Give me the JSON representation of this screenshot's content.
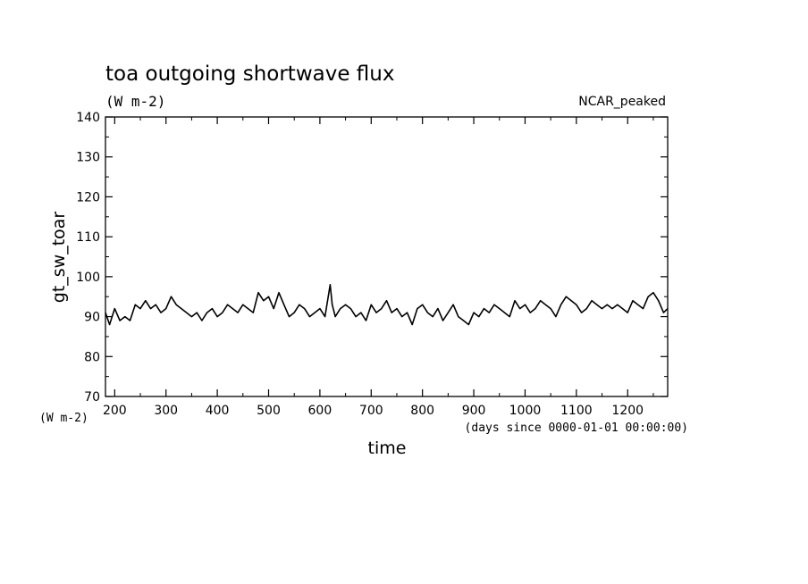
{
  "chart_data": {
    "type": "line",
    "title": "toa outgoing shortwave flux",
    "subtitle": "(W m-2)",
    "label_right": "NCAR_peaked",
    "xlabel": "time",
    "xunits": "(days since 0000-01-01 00:00:00)",
    "ylabel": "gt_sw_toar",
    "yunits": "(W m-2)",
    "xlim": [
      182,
      1278
    ],
    "ylim": [
      70,
      140
    ],
    "xticks": [
      200,
      300,
      400,
      500,
      600,
      700,
      800,
      900,
      1000,
      1100,
      1200
    ],
    "yticks": [
      70,
      80,
      90,
      100,
      110,
      120,
      130,
      140
    ],
    "grid": false,
    "colors": {
      "line": "#000000"
    },
    "series": [
      {
        "x": [
          182,
          190,
          200,
          210,
          220,
          230,
          240,
          250,
          260,
          270,
          280,
          290,
          300,
          310,
          320,
          330,
          340,
          350,
          360,
          370,
          380,
          390,
          400,
          410,
          420,
          430,
          440,
          450,
          460,
          470,
          480,
          490,
          500,
          510,
          520,
          530,
          540,
          550,
          560,
          570,
          580,
          590,
          600,
          610,
          620,
          624,
          630,
          640,
          650,
          660,
          670,
          680,
          690,
          700,
          710,
          720,
          730,
          740,
          750,
          760,
          770,
          780,
          790,
          800,
          810,
          820,
          830,
          840,
          850,
          860,
          870,
          880,
          890,
          900,
          910,
          920,
          930,
          940,
          950,
          960,
          970,
          980,
          990,
          1000,
          1010,
          1020,
          1030,
          1040,
          1050,
          1060,
          1070,
          1080,
          1090,
          1100,
          1110,
          1120,
          1130,
          1140,
          1150,
          1160,
          1170,
          1180,
          1190,
          1200,
          1210,
          1220,
          1230,
          1240,
          1250,
          1260,
          1270,
          1278
        ],
        "y": [
          91,
          88,
          92,
          89,
          90,
          89,
          93,
          92,
          94,
          92,
          93,
          91,
          92,
          95,
          93,
          92,
          91,
          90,
          91,
          89,
          91,
          92,
          90,
          91,
          93,
          92,
          91,
          93,
          92,
          91,
          96,
          94,
          95,
          92,
          96,
          93,
          90,
          91,
          93,
          92,
          90,
          91,
          92,
          90,
          98,
          93,
          90,
          92,
          93,
          92,
          90,
          91,
          89,
          93,
          91,
          92,
          94,
          91,
          92,
          90,
          91,
          88,
          92,
          93,
          91,
          90,
          92,
          89,
          91,
          93,
          90,
          89,
          88,
          91,
          90,
          92,
          91,
          93,
          92,
          91,
          90,
          94,
          92,
          93,
          91,
          92,
          94,
          93,
          92,
          90,
          93,
          95,
          94,
          93,
          91,
          92,
          94,
          93,
          92,
          93,
          92,
          93,
          92,
          91,
          94,
          93,
          92,
          95,
          96,
          94,
          91,
          92
        ]
      }
    ]
  }
}
